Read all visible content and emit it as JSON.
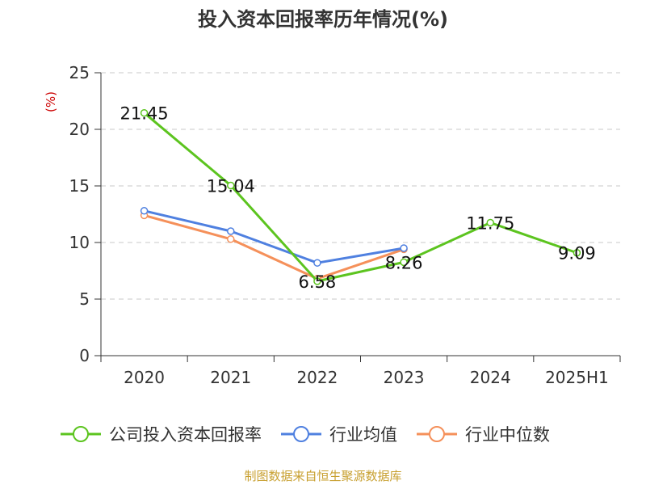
{
  "chart_data": {
    "type": "line",
    "title": "投入资本回报率历年情况(%)",
    "ylabel": "(%)",
    "xlabel": "",
    "categories": [
      "2020",
      "2021",
      "2022",
      "2023",
      "2024",
      "2025H1"
    ],
    "ylim": [
      0,
      25
    ],
    "yticks": [
      "0",
      "5",
      "10",
      "15",
      "20",
      "25"
    ],
    "grid": true,
    "legend_position": "bottom",
    "series": [
      {
        "name": "公司投入资本回报率",
        "color": "#5cc41f",
        "values": [
          21.45,
          15.04,
          6.58,
          8.26,
          11.75,
          9.09
        ],
        "labels": [
          "21.45",
          "15.04",
          "6.58",
          "8.26",
          "11.75",
          "9.09"
        ]
      },
      {
        "name": "行业均值",
        "color": "#4f80e0",
        "values": [
          12.8,
          11.0,
          8.2,
          9.5,
          null,
          null
        ]
      },
      {
        "name": "行业中位数",
        "color": "#f5905a",
        "values": [
          12.4,
          10.3,
          6.8,
          9.4,
          null,
          null
        ]
      }
    ]
  },
  "source": "制图数据来自恒生聚源数据库"
}
